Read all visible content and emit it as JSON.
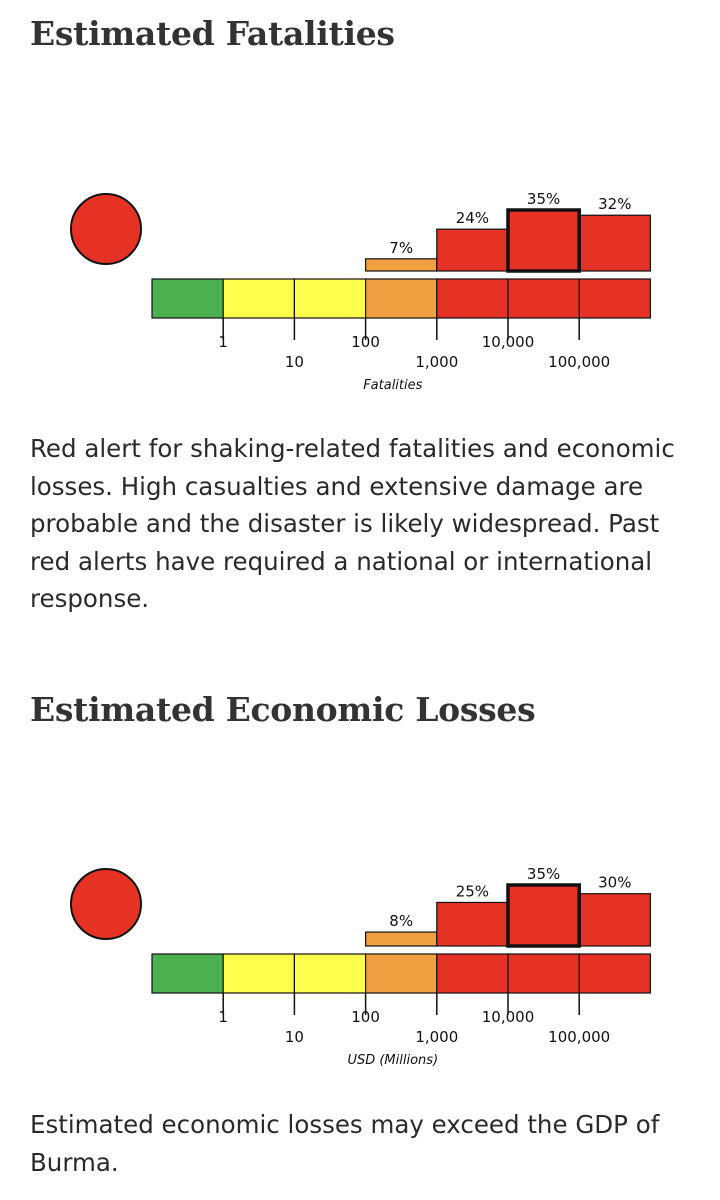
{
  "sections": [
    {
      "title": "Estimated Fatalities",
      "description": "Red alert for shaking-related fatalities and economic losses. High casualties and extensive damage are probable and the disaster is likely widespread. Past red alerts have required a national or international response."
    },
    {
      "title": "Estimated Economic Losses",
      "description": "Estimated economic losses may exceed the GDP of Burma."
    }
  ],
  "colors": {
    "green": "#4caf50",
    "yellow": "#ffff4d",
    "orange": "#f0a040",
    "red": "#e63225",
    "alert_circle": "#e63225",
    "outline": "#111111"
  },
  "chart_data": [
    {
      "type": "bar",
      "alert_level": "red",
      "xlabel": "Fatalities",
      "ylabel": "",
      "scale_tick_labels": [
        "1",
        "10",
        "100",
        "1,000",
        "10,000",
        "100,000"
      ],
      "scale_band_colors": [
        "green",
        "yellow",
        "yellow",
        "orange",
        "red",
        "red",
        "red"
      ],
      "categories": [
        "0",
        "1-10",
        "10-100",
        "100-1,000",
        "1,000-10,000",
        "10,000-100,000",
        "100,000+"
      ],
      "values": [
        0,
        0,
        0,
        7,
        24,
        35,
        32
      ],
      "value_labels": [
        "",
        "",
        "",
        "7%",
        "24%",
        "35%",
        "32%"
      ],
      "bar_colors": [
        "green",
        "yellow",
        "yellow",
        "orange",
        "red",
        "red",
        "red"
      ],
      "highlighted_index": 5,
      "ylim": [
        0,
        35
      ]
    },
    {
      "type": "bar",
      "alert_level": "red",
      "xlabel": "USD (Millions)",
      "ylabel": "",
      "scale_tick_labels": [
        "1",
        "10",
        "100",
        "1,000",
        "10,000",
        "100,000"
      ],
      "scale_band_colors": [
        "green",
        "yellow",
        "yellow",
        "orange",
        "red",
        "red",
        "red"
      ],
      "categories": [
        "0",
        "1-10",
        "10-100",
        "100-1,000",
        "1,000-10,000",
        "10,000-100,000",
        "100,000+"
      ],
      "values": [
        0,
        0,
        0,
        8,
        25,
        35,
        30
      ],
      "value_labels": [
        "",
        "",
        "",
        "8%",
        "25%",
        "35%",
        "30%"
      ],
      "bar_colors": [
        "green",
        "yellow",
        "yellow",
        "orange",
        "red",
        "red",
        "red"
      ],
      "highlighted_index": 5,
      "ylim": [
        0,
        35
      ]
    }
  ]
}
